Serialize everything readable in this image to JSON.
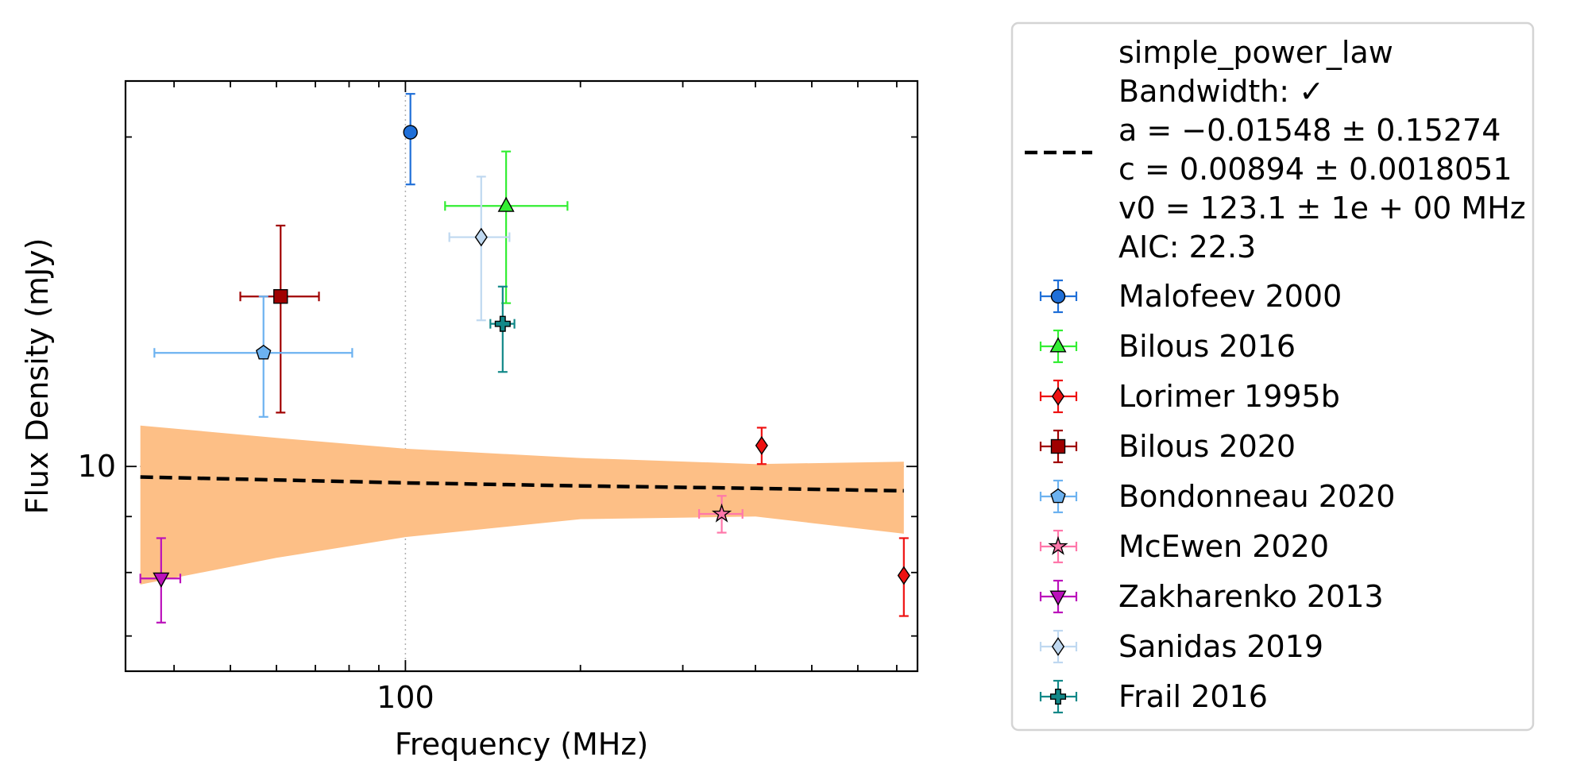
{
  "chart_data": {
    "type": "scatter",
    "title": "",
    "xlabel": "Frequency (MHz)",
    "ylabel": "Flux Density (mJy)",
    "xscale": "log",
    "yscale": "log",
    "xlim": [
      33,
      760
    ],
    "ylim": [
      6.5,
      22.5
    ],
    "x_ticks": [
      {
        "value": 100,
        "label": "100"
      }
    ],
    "y_ticks": [
      {
        "value": 10,
        "label": "10"
      }
    ],
    "grid": "dotted at 100 MHz and 10 mJy",
    "legend_position": "outside-right",
    "fit": {
      "name": "simple_power_law",
      "style": "dashed",
      "color": "#000000",
      "band_color": "#fdbf86",
      "label_lines": [
        "simple_power_law",
        "Bandwidth: ✓",
        "a = −0.01548 ± 0.15274",
        "c = 0.00894 ± 0.0018051",
        "v0 = 123.1 ± 1e + 00 MHz",
        "AIC: 22.3"
      ],
      "line": [
        [
          35,
          9.78
        ],
        [
          60,
          9.72
        ],
        [
          100,
          9.66
        ],
        [
          200,
          9.6
        ],
        [
          400,
          9.55
        ],
        [
          720,
          9.5
        ]
      ],
      "band_upper": [
        [
          35,
          10.9
        ],
        [
          60,
          10.62
        ],
        [
          100,
          10.38
        ],
        [
          200,
          10.18
        ],
        [
          400,
          10.05
        ],
        [
          720,
          10.1
        ]
      ],
      "band_lower": [
        [
          35,
          7.8
        ],
        [
          60,
          8.25
        ],
        [
          100,
          8.62
        ],
        [
          200,
          8.95
        ],
        [
          400,
          9.0
        ],
        [
          720,
          8.68
        ]
      ]
    },
    "series": [
      {
        "name": "Malofeev 2000",
        "marker": "circle",
        "color": "#1f6fd8",
        "points": [
          {
            "x": 102,
            "y": 20.2,
            "xerr": [
              0,
              0
            ],
            "yerr": [
              2.1,
              1.7
            ]
          }
        ]
      },
      {
        "name": "Bilous 2016",
        "marker": "triangle-up",
        "color": "#33ee33",
        "points": [
          {
            "x": 149,
            "y": 17.3,
            "xerr": [
              32,
              41
            ],
            "yerr": [
              3.2,
              2.1
            ]
          }
        ]
      },
      {
        "name": "Lorimer 1995b",
        "marker": "diamond",
        "color": "#ee1111",
        "points": [
          {
            "x": 410,
            "y": 10.45,
            "xerr": [
              0,
              0
            ],
            "yerr": [
              0.4,
              0.4
            ]
          },
          {
            "x": 720,
            "y": 7.95,
            "xerr": [
              0,
              0
            ],
            "yerr": [
              0.65,
              0.65
            ]
          }
        ]
      },
      {
        "name": "Bilous 2020",
        "marker": "square",
        "color": "#a00000",
        "points": [
          {
            "x": 61,
            "y": 14.3,
            "xerr": [
              9,
              10
            ],
            "yerr": [
              3.1,
              2.3
            ]
          }
        ]
      },
      {
        "name": "Bondonneau 2020",
        "marker": "pentagon",
        "color": "#6cb2f0",
        "points": [
          {
            "x": 57,
            "y": 12.7,
            "xerr": [
              20,
              24
            ],
            "yerr": [
              1.6,
              1.6
            ]
          }
        ]
      },
      {
        "name": "McEwen 2020",
        "marker": "star",
        "color": "#ff77aa",
        "points": [
          {
            "x": 350,
            "y": 9.05,
            "xerr": [
              30,
              30
            ],
            "yerr": [
              0.35,
              0.35
            ]
          }
        ]
      },
      {
        "name": "Zakharenko 2013",
        "marker": "triangle-down",
        "color": "#bb11bb",
        "points": [
          {
            "x": 38,
            "y": 7.9,
            "xerr": [
              3,
              3
            ],
            "yerr": [
              0.7,
              0.7
            ]
          }
        ]
      },
      {
        "name": "Sanidas 2019",
        "marker": "diamond",
        "color": "#bfd8f0",
        "points": [
          {
            "x": 135,
            "y": 16.2,
            "xerr": [
              16,
              16
            ],
            "yerr": [
              2.6,
              2.2
            ]
          }
        ]
      },
      {
        "name": "Frail 2016",
        "marker": "plus",
        "color": "#118888",
        "points": [
          {
            "x": 147,
            "y": 13.5,
            "xerr": [
              7,
              7
            ],
            "yerr": [
              1.3,
              1.1
            ]
          }
        ]
      }
    ]
  }
}
